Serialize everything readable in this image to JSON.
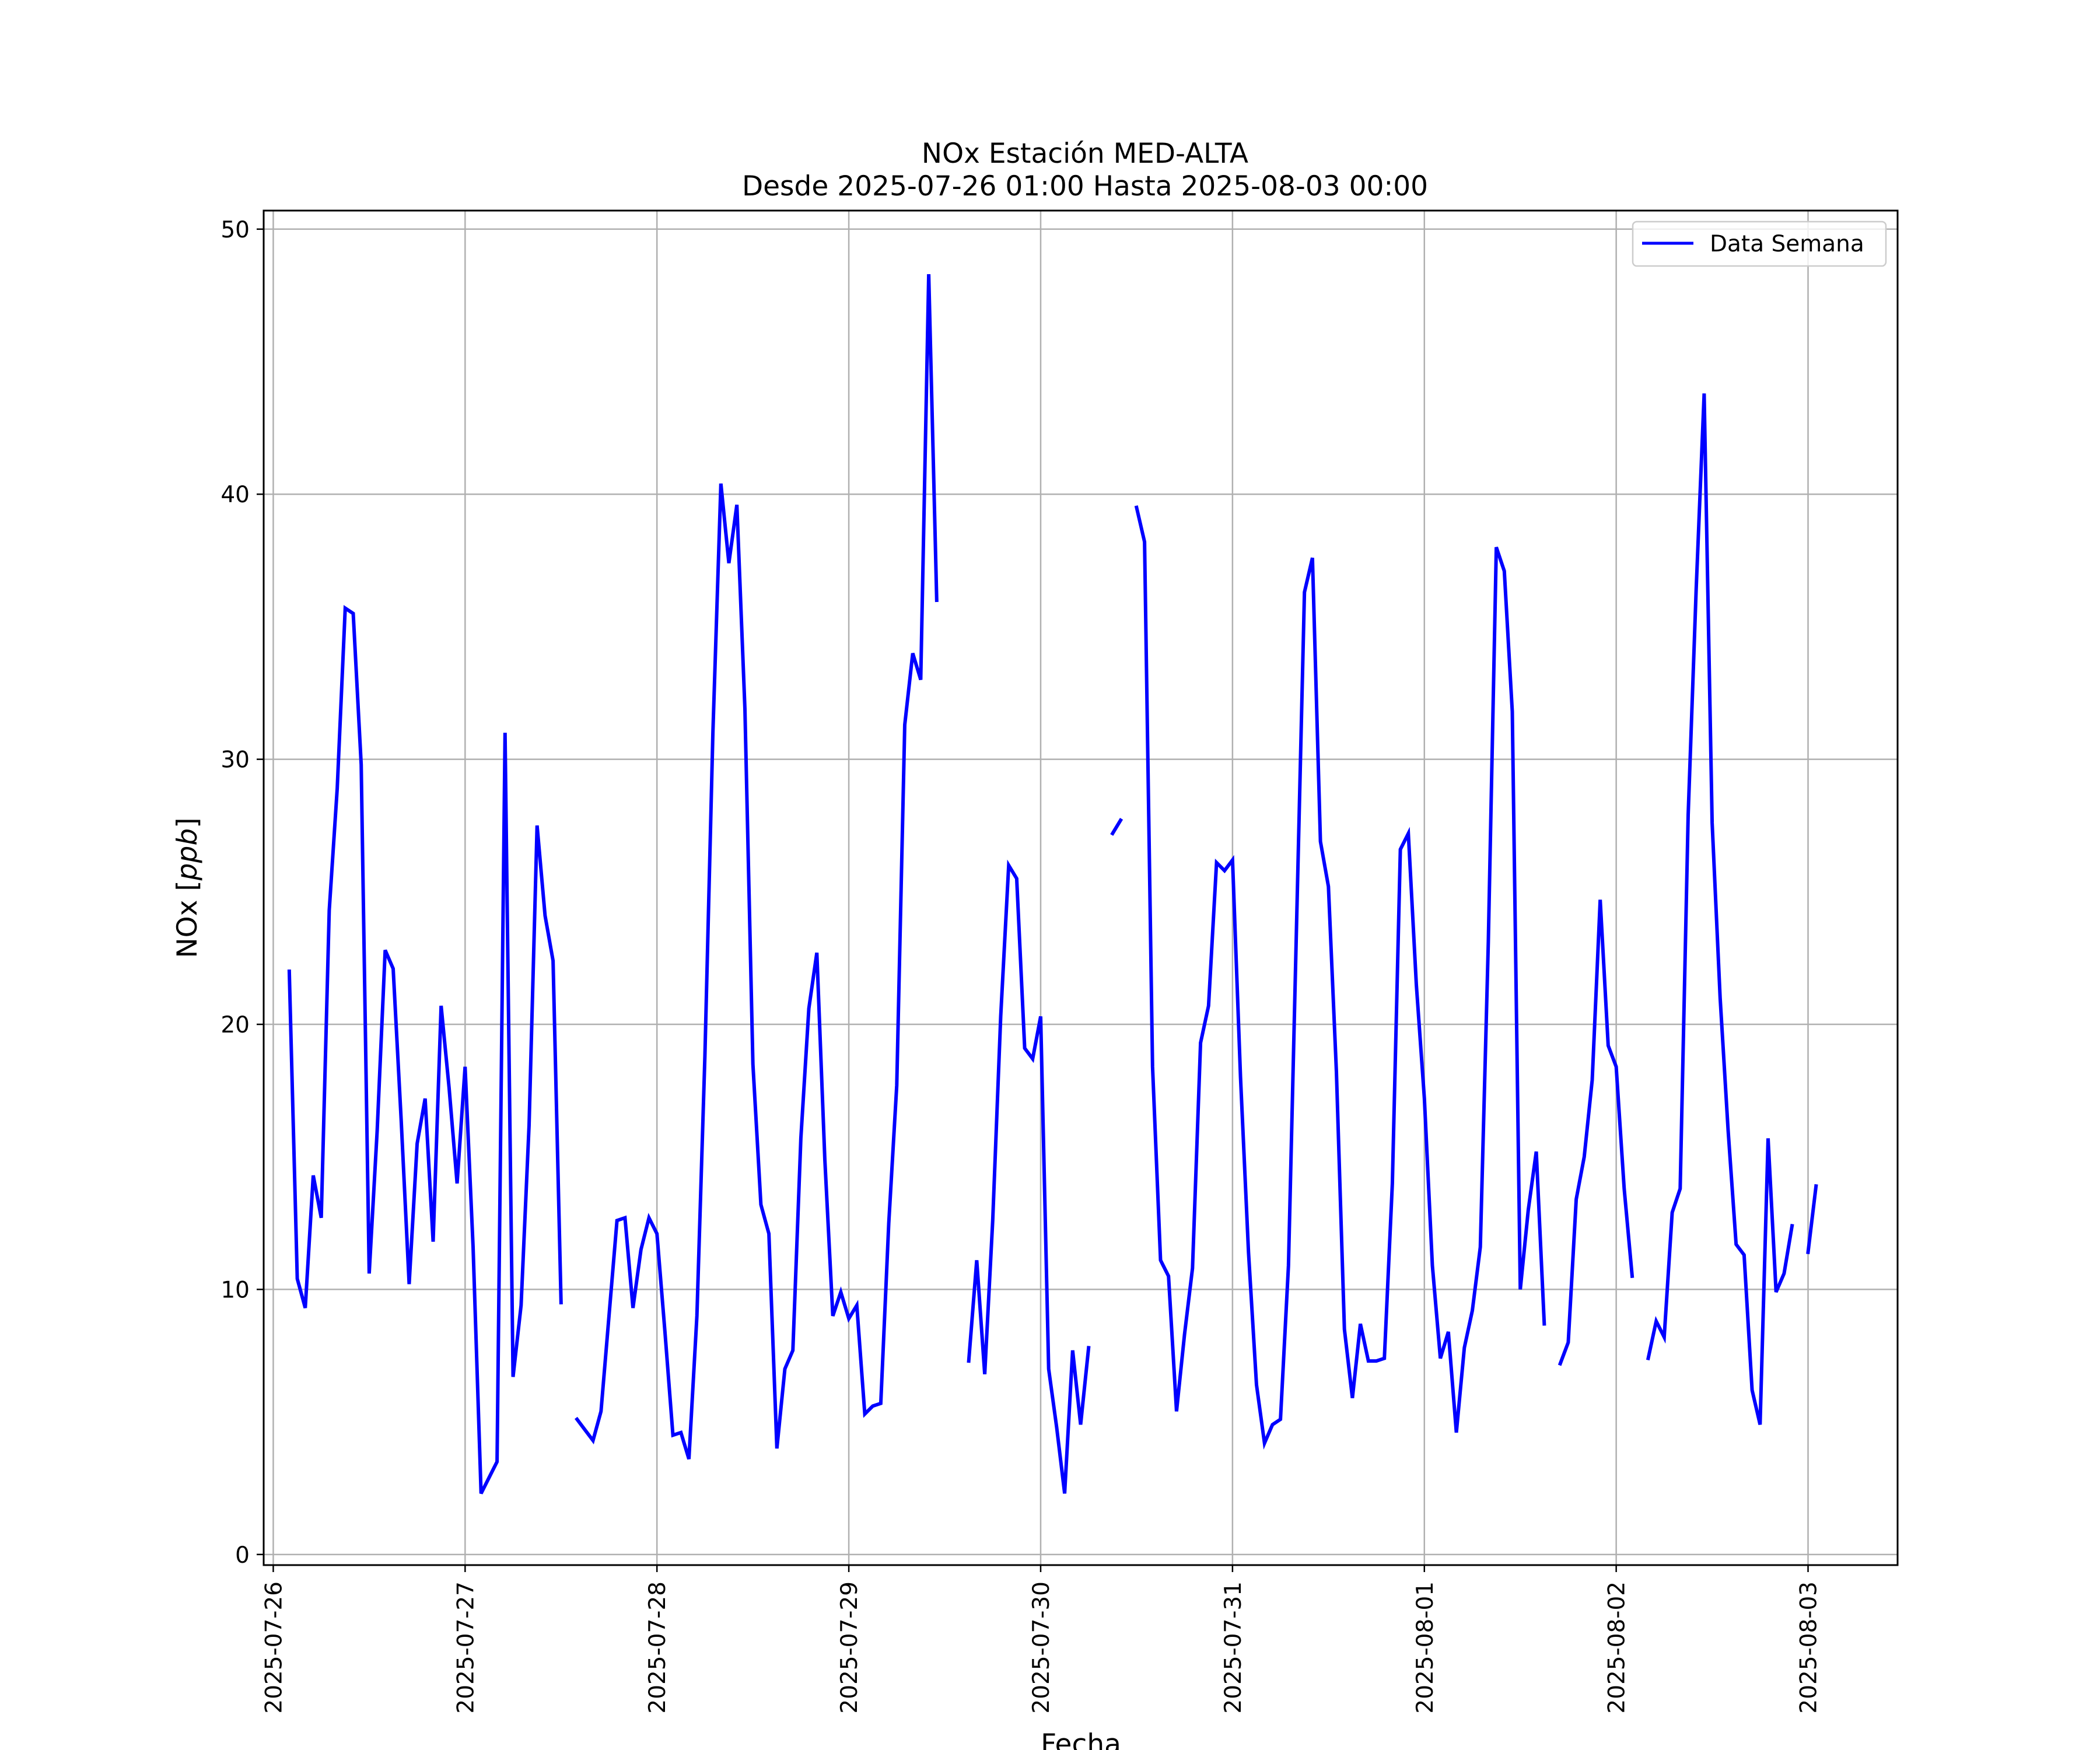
{
  "chart_data": {
    "type": "line",
    "title": "NOx Estación MED-ALTA",
    "subtitle": "Desde 2025-07-26 01:00 Hasta 2025-08-03 00:00",
    "xlabel": "Fecha",
    "ylabel_prefix": "NOx [",
    "ylabel_unit": "ppb",
    "ylabel_suffix": "]",
    "xlim": [
      "2025-07-25 22:48",
      "2025-08-03 11:12"
    ],
    "ylim": [
      -0.4,
      50.7
    ],
    "x_ticks": [
      "2025-07-26",
      "2025-07-27",
      "2025-07-28",
      "2025-07-29",
      "2025-07-30",
      "2025-07-31",
      "2025-08-01",
      "2025-08-02",
      "2025-08-03"
    ],
    "y_ticks": [
      0,
      10,
      20,
      30,
      40,
      50
    ],
    "grid": true,
    "legend_position": "top-right",
    "series": [
      {
        "name": "Data Semana",
        "color": "#0000ff",
        "start": "2025-07-26 02:00",
        "step_hours": 1,
        "values": [
          22.0,
          10.4,
          9.3,
          14.3,
          12.7,
          24.3,
          28.9,
          35.7,
          35.5,
          29.8,
          10.6,
          16.0,
          22.8,
          22.1,
          16.4,
          10.2,
          15.5,
          17.2,
          11.8,
          20.7,
          17.6,
          14.0,
          18.4,
          11.6,
          2.3,
          2.9,
          3.5,
          31.0,
          6.7,
          9.4,
          16.2,
          27.5,
          24.1,
          22.4,
          9.5,
          null,
          5.1,
          4.7,
          4.3,
          5.4,
          9.0,
          12.6,
          12.7,
          9.3,
          11.5,
          12.7,
          12.1,
          8.4,
          4.5,
          4.6,
          3.6,
          9.0,
          18.8,
          31.0,
          40.4,
          37.4,
          39.6,
          31.9,
          18.5,
          13.2,
          12.1,
          4.0,
          7.0,
          7.7,
          15.7,
          20.6,
          22.7,
          14.9,
          9.0,
          9.9,
          8.9,
          9.4,
          5.3,
          5.6,
          5.7,
          12.5,
          17.7,
          31.3,
          34.0,
          33.0,
          48.3,
          36.0,
          null,
          null,
          null,
          7.3,
          11.1,
          6.8,
          12.6,
          20.3,
          26.0,
          25.5,
          19.1,
          18.7,
          20.3,
          7.0,
          4.8,
          2.3,
          7.7,
          4.9,
          7.8,
          null,
          null,
          27.2,
          27.7,
          null,
          39.5,
          38.2,
          18.4,
          11.1,
          10.5,
          5.4,
          8.3,
          10.8,
          19.3,
          20.7,
          26.1,
          25.8,
          26.2,
          18.0,
          11.4,
          6.4,
          4.2,
          4.9,
          5.1,
          10.9,
          23.6,
          36.3,
          37.6,
          26.9,
          25.2,
          18.2,
          8.5,
          5.9,
          8.7,
          7.3,
          7.3,
          7.4,
          14.0,
          26.6,
          27.2,
          21.5,
          17.2,
          10.9,
          7.4,
          8.4,
          4.6,
          7.8,
          9.2,
          11.6,
          23.1,
          38.0,
          37.1,
          31.8,
          10.0,
          13.0,
          15.2,
          8.7,
          null,
          7.2,
          8.0,
          13.4,
          15.0,
          17.9,
          24.7,
          19.2,
          18.4,
          13.8,
          10.5,
          null,
          7.4,
          8.8,
          8.2,
          12.9,
          13.8,
          27.9,
          36.4,
          43.8,
          27.6,
          21.0,
          16.0,
          11.7,
          11.3,
          6.2,
          4.9,
          15.7,
          9.9,
          10.6,
          12.4,
          null,
          11.4,
          13.9
        ]
      }
    ]
  }
}
